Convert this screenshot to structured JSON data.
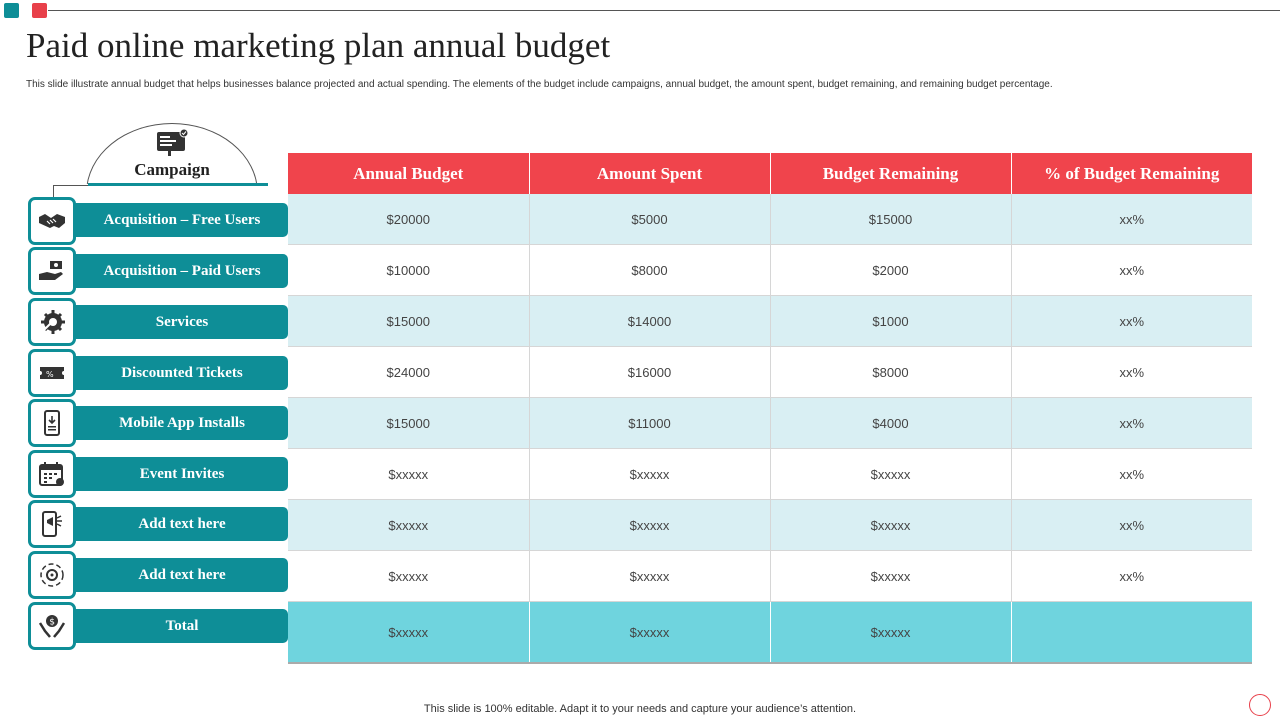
{
  "slide": {
    "title": "Paid online marketing plan annual budget",
    "subtitle": "This slide illustrate annual budget that helps businesses balance projected and actual spending. The elements of the budget include campaigns, annual budget, the amount spent, budget remaining, and remaining budget percentage.",
    "footer": "This slide is 100% editable.  Adapt it to your needs and capture your audience’s attention."
  },
  "colors": {
    "accent_teal": "#0e8e97",
    "header_red": "#f0444c",
    "row_shade": "#d9eff3",
    "total_row": "#6fd4de"
  },
  "campaign": {
    "header": "Campaign",
    "header_icon": "campaign-billboard-icon",
    "rows": [
      {
        "label": "Acquisition – Free Users",
        "icon": "handshake-icon"
      },
      {
        "label": "Acquisition – Paid Users",
        "icon": "hand-money-icon"
      },
      {
        "label": "Services",
        "icon": "gear-tools-icon"
      },
      {
        "label": "Discounted Tickets",
        "icon": "ticket-icon"
      },
      {
        "label": "Mobile App Installs",
        "icon": "mobile-install-icon"
      },
      {
        "label": "Event Invites",
        "icon": "calendar-icon"
      },
      {
        "label": "Add text here",
        "icon": "phone-megaphone-icon"
      },
      {
        "label": "Add text here",
        "icon": "target-cycle-icon"
      },
      {
        "label": "Total",
        "icon": "hands-money-icon"
      }
    ]
  },
  "table": {
    "columns": [
      "Annual Budget",
      "Amount Spent",
      "Budget Remaining",
      "% of Budget Remaining"
    ],
    "rows": [
      [
        "$20000",
        "$5000",
        "$15000",
        "xx%"
      ],
      [
        "$10000",
        "$8000",
        "$2000",
        "xx%"
      ],
      [
        "$15000",
        "$14000",
        "$1000",
        "xx%"
      ],
      [
        "$24000",
        "$16000",
        "$8000",
        "xx%"
      ],
      [
        "$15000",
        "$11000",
        "$4000",
        "xx%"
      ],
      [
        "$xxxxx",
        "$xxxxx",
        "$xxxxx",
        "xx%"
      ],
      [
        "$xxxxx",
        "$xxxxx",
        "$xxxxx",
        "xx%"
      ],
      [
        "$xxxxx",
        "$xxxxx",
        "$xxxxx",
        "xx%"
      ]
    ],
    "total": [
      "$xxxxx",
      "$xxxxx",
      "$xxxxx",
      ""
    ]
  }
}
